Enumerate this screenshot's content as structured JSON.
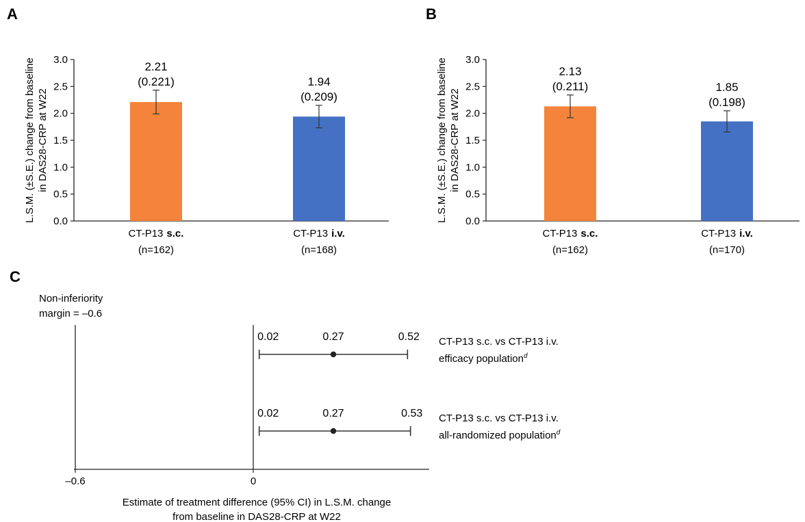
{
  "colors": {
    "sc": "#f4843b",
    "iv": "#4471c4",
    "axis": "#222222",
    "text": "#1a1a1a"
  },
  "panels": {
    "a": {
      "letter": "A"
    },
    "b": {
      "letter": "B"
    },
    "c": {
      "letter": "C"
    }
  },
  "chart_data": [
    {
      "id": "panel-a",
      "type": "bar",
      "ylabel_line1": "L.S.M. (±S.E.) change from baseline",
      "ylabel_line2": "in DAS28-CRP at W22",
      "ylim": [
        0,
        3.0
      ],
      "yticks": [
        "0.0",
        "0.5",
        "1.0",
        "1.5",
        "2.0",
        "2.5",
        "3.0"
      ],
      "bars": [
        {
          "name": "CT-P13",
          "route": "s.c.",
          "n_label": "(n=162)",
          "value": 2.21,
          "se": 0.221,
          "value_label": "2.21",
          "se_label": "(0.221)",
          "color": "#f4843b"
        },
        {
          "name": "CT-P13",
          "route": "i.v.",
          "n_label": "(n=168)",
          "value": 1.94,
          "se": 0.209,
          "value_label": "1.94",
          "se_label": "(0.209)",
          "color": "#4471c4"
        }
      ]
    },
    {
      "id": "panel-b",
      "type": "bar",
      "ylabel_line1": "L.S.M. (±S.E.) change from baseline",
      "ylabel_line2": "in DAS28-CRP at W22",
      "ylim": [
        0,
        3.0
      ],
      "yticks": [
        "0.0",
        "0.5",
        "1.0",
        "1.5",
        "2.0",
        "2.5",
        "3.0"
      ],
      "bars": [
        {
          "name": "CT-P13",
          "route": "s.c.",
          "n_label": "(n=162)",
          "value": 2.13,
          "se": 0.211,
          "value_label": "2.13",
          "se_label": "(0.211)",
          "color": "#f4843b"
        },
        {
          "name": "CT-P13",
          "route": "i.v.",
          "n_label": "(n=170)",
          "value": 1.85,
          "se": 0.198,
          "value_label": "1.85",
          "se_label": "(0.198)",
          "color": "#4471c4"
        }
      ]
    },
    {
      "id": "panel-c",
      "type": "scatter",
      "margin_label_line1": "Non-inferiority",
      "margin_label_line2": "margin = –0.6",
      "xlim": [
        -0.6,
        0.6
      ],
      "xticks": [
        {
          "value": -0.6,
          "label": "–0.6"
        },
        {
          "value": 0,
          "label": "0"
        }
      ],
      "xlabel_line1": "Estimate of treatment difference (95% CI) in L.S.M. change",
      "xlabel_line2": "from baseline in DAS28-CRP at W22",
      "rows": [
        {
          "estimate": 0.27,
          "lower": 0.02,
          "upper": 0.52,
          "est_label": "0.27",
          "lower_label": "0.02",
          "upper_label": "0.52",
          "line1": "CT-P13 s.c. vs CT-P13 i.v.",
          "line2": "efficacy population",
          "sup": "d"
        },
        {
          "estimate": 0.27,
          "lower": 0.02,
          "upper": 0.53,
          "est_label": "0.27",
          "lower_label": "0.02",
          "upper_label": "0.53",
          "line1": "CT-P13 s.c. vs CT-P13 i.v.",
          "line2": "all-randomized population",
          "sup": "d"
        }
      ]
    }
  ]
}
